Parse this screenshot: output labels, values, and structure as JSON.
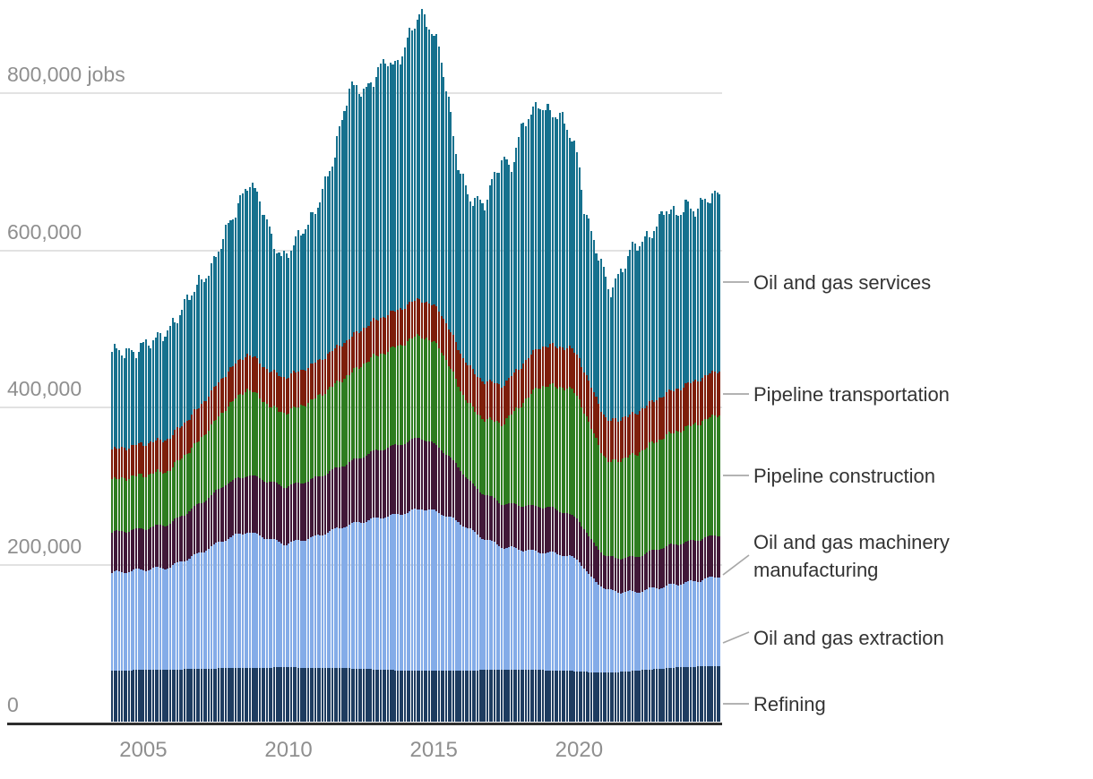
{
  "chart_data": {
    "type": "bar",
    "variant": "stacked-monthly",
    "title": "",
    "unit": "jobs",
    "values_in_thousands": true,
    "x_range": [
      2004,
      2025
    ],
    "ylim": [
      0,
      900000
    ],
    "grid": true,
    "legend_position": "right-annotations",
    "y_ticks": [
      {
        "value": 0,
        "label": "0"
      },
      {
        "value": 200,
        "label": "200,000"
      },
      {
        "value": 400,
        "label": "400,000"
      },
      {
        "value": 600,
        "label": "600,000"
      },
      {
        "value": 800,
        "label": "800,000 jobs"
      }
    ],
    "x_ticks": [
      {
        "value": 2005,
        "label": "2005"
      },
      {
        "value": 2010,
        "label": "2010"
      },
      {
        "value": 2015,
        "label": "2015"
      },
      {
        "value": 2020,
        "label": "2020"
      }
    ],
    "total_anchors": [
      [
        2004.0,
        466
      ],
      [
        2004.6,
        472
      ],
      [
        2005.0,
        476
      ],
      [
        2005.5,
        481
      ],
      [
        2006.0,
        502
      ],
      [
        2006.5,
        524
      ],
      [
        2007.0,
        556
      ],
      [
        2007.5,
        582
      ],
      [
        2008.0,
        622
      ],
      [
        2008.4,
        660
      ],
      [
        2008.75,
        690
      ],
      [
        2009.1,
        662
      ],
      [
        2009.5,
        618
      ],
      [
        2009.9,
        592
      ],
      [
        2010.3,
        604
      ],
      [
        2010.8,
        632
      ],
      [
        2011.2,
        668
      ],
      [
        2011.7,
        716
      ],
      [
        2012.2,
        806
      ],
      [
        2012.45,
        812
      ],
      [
        2012.75,
        798
      ],
      [
        2013.1,
        816
      ],
      [
        2013.5,
        846
      ],
      [
        2013.75,
        834
      ],
      [
        2014.1,
        852
      ],
      [
        2014.65,
        902
      ],
      [
        2015.0,
        886
      ],
      [
        2015.3,
        856
      ],
      [
        2015.6,
        790
      ],
      [
        2015.9,
        716
      ],
      [
        2016.3,
        672
      ],
      [
        2016.85,
        652
      ],
      [
        2017.2,
        692
      ],
      [
        2017.5,
        722
      ],
      [
        2017.75,
        702
      ],
      [
        2018.2,
        756
      ],
      [
        2018.75,
        790
      ],
      [
        2019.1,
        774
      ],
      [
        2019.5,
        764
      ],
      [
        2019.85,
        746
      ],
      [
        2020.1,
        716
      ],
      [
        2020.3,
        654
      ],
      [
        2020.6,
        610
      ],
      [
        2020.9,
        578
      ],
      [
        2021.15,
        549
      ],
      [
        2021.5,
        570
      ],
      [
        2021.9,
        596
      ],
      [
        2022.2,
        606
      ],
      [
        2022.6,
        624
      ],
      [
        2023.1,
        650
      ],
      [
        2023.45,
        640
      ],
      [
        2023.8,
        660
      ],
      [
        2024.1,
        652
      ],
      [
        2024.5,
        660
      ],
      [
        2024.95,
        671
      ]
    ],
    "series": [
      {
        "name": "Refining",
        "color": "#1E3C60",
        "anchors": [
          [
            2004,
            65
          ],
          [
            2006,
            66
          ],
          [
            2008,
            68
          ],
          [
            2010,
            69
          ],
          [
            2012,
            68
          ],
          [
            2014,
            65
          ],
          [
            2016,
            65
          ],
          [
            2018,
            66
          ],
          [
            2019.5,
            65
          ],
          [
            2020.5,
            63
          ],
          [
            2021.5,
            63
          ],
          [
            2022.5,
            66
          ],
          [
            2023.5,
            69
          ],
          [
            2024.95,
            71
          ]
        ]
      },
      {
        "name": "Oil and gas extraction",
        "color": "#84ACE8",
        "anchors": [
          [
            2004,
            124
          ],
          [
            2005,
            127
          ],
          [
            2006,
            130
          ],
          [
            2007,
            146
          ],
          [
            2008,
            165
          ],
          [
            2008.7,
            173
          ],
          [
            2009.5,
            163
          ],
          [
            2010,
            157
          ],
          [
            2011,
            166
          ],
          [
            2012,
            180
          ],
          [
            2013,
            191
          ],
          [
            2014,
            199
          ],
          [
            2014.7,
            206
          ],
          [
            2015.3,
            201
          ],
          [
            2016,
            188
          ],
          [
            2016.8,
            168
          ],
          [
            2017.5,
            156
          ],
          [
            2018.5,
            151
          ],
          [
            2019.5,
            148
          ],
          [
            2020.1,
            142
          ],
          [
            2020.5,
            121
          ],
          [
            2021.1,
            104
          ],
          [
            2022,
            100
          ],
          [
            2023,
            104
          ],
          [
            2024,
            108
          ],
          [
            2024.95,
            114
          ]
        ]
      },
      {
        "name": "Oil and gas machinery manufacturing",
        "color": "#411838",
        "anchors": [
          [
            2004,
            51
          ],
          [
            2005,
            52
          ],
          [
            2006,
            55
          ],
          [
            2007,
            62
          ],
          [
            2008,
            70
          ],
          [
            2009,
            73
          ],
          [
            2010,
            72
          ],
          [
            2011,
            74
          ],
          [
            2012,
            78
          ],
          [
            2013,
            85
          ],
          [
            2014.6,
            91
          ],
          [
            2015.5,
            80
          ],
          [
            2016.5,
            58
          ],
          [
            2017.5,
            55
          ],
          [
            2019,
            58
          ],
          [
            2020.3,
            50
          ],
          [
            2021,
            42
          ],
          [
            2022,
            44
          ],
          [
            2023,
            50
          ],
          [
            2024.95,
            53
          ]
        ]
      },
      {
        "name": "Pipeline construction",
        "color": "#2E7D20",
        "anchors": [
          [
            2004,
            67
          ],
          [
            2005,
            68
          ],
          [
            2006,
            68
          ],
          [
            2007,
            80
          ],
          [
            2008,
            97
          ],
          [
            2008.7,
            110
          ],
          [
            2009.5,
            96
          ],
          [
            2010,
            94
          ],
          [
            2011,
            101
          ],
          [
            2012,
            110
          ],
          [
            2013,
            120
          ],
          [
            2014.6,
            130
          ],
          [
            2015.3,
            128
          ],
          [
            2016.1,
            99
          ],
          [
            2016.8,
            95
          ],
          [
            2017.5,
            102
          ],
          [
            2018.7,
            152
          ],
          [
            2019.9,
            160
          ],
          [
            2020.6,
            140
          ],
          [
            2021.1,
            120
          ],
          [
            2022,
            130
          ],
          [
            2023,
            140
          ],
          [
            2024.95,
            153
          ]
        ]
      },
      {
        "name": "Pipeline transportation",
        "color": "#7E1E0B",
        "anchors": [
          [
            2004,
            38
          ],
          [
            2006,
            41
          ],
          [
            2008,
            44
          ],
          [
            2010,
            45
          ],
          [
            2012,
            45
          ],
          [
            2014,
            46
          ],
          [
            2016,
            47
          ],
          [
            2018,
            49
          ],
          [
            2020,
            52
          ],
          [
            2022,
            52
          ],
          [
            2024.95,
            56
          ]
        ]
      },
      {
        "name": "Oil and gas services",
        "color": "#16718E",
        "residual_from_total": true,
        "reference_values": [
          [
            2004,
            121
          ],
          [
            2008.7,
            226
          ],
          [
            2014.6,
            362
          ],
          [
            2016.8,
            220
          ],
          [
            2019.9,
            256
          ],
          [
            2021.1,
            169
          ],
          [
            2024.95,
            229
          ]
        ]
      }
    ],
    "noise_amplitude_thousands": 13
  },
  "annotations": [
    {
      "label": "Oil and gas services"
    },
    {
      "label": "Pipeline transportation"
    },
    {
      "label": "Pipeline construction"
    },
    {
      "label": "Oil and gas machinery manufacturing"
    },
    {
      "label": "Oil and gas extraction"
    },
    {
      "label": "Refining"
    }
  ]
}
